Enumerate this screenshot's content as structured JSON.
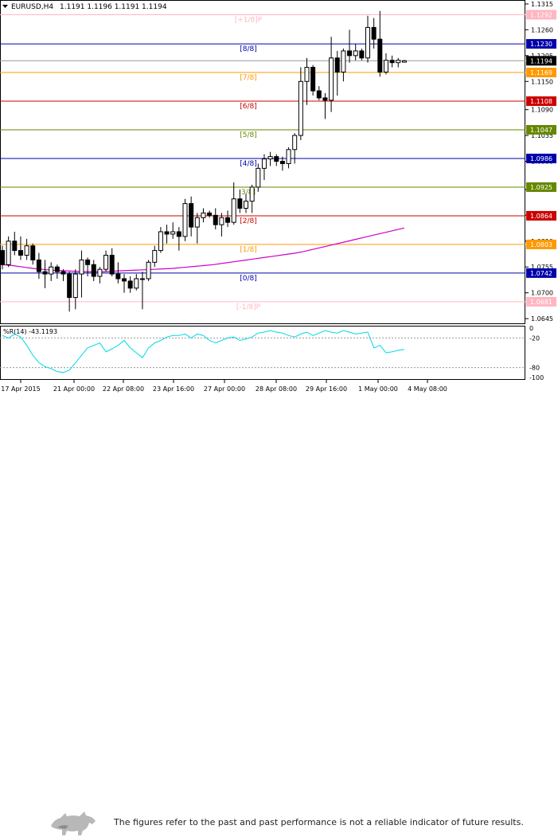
{
  "header": {
    "symbol_label": "EURUSD,H4",
    "ohlc": "1.1191 1.1196 1.1191 1.1194",
    "menu_icon": "triangle-down-icon"
  },
  "colors": {
    "bull": "#ffffff",
    "bear": "#000000",
    "candle_outline": "#000000",
    "ma": "#cc00cc",
    "wpr": "#00d8e8",
    "grid_level_neutral": "#999999"
  },
  "chart_data": [
    {
      "type": "candlestick",
      "title": "EURUSD,H4",
      "ylim": [
        1.0635,
        1.132
      ],
      "y_ticks": [
        "1.1315",
        "1.1260",
        "1.1205",
        "1.1150",
        "1.1090",
        "1.1035",
        "1.0980",
        "1.0920",
        "1.0865",
        "1.0810",
        "1.0755",
        "1.0700",
        "1.0645"
      ],
      "x_ticks": [
        "17 Apr 2015",
        "21 Apr 00:00",
        "22 Apr 08:00",
        "23 Apr 16:00",
        "27 Apr 00:00",
        "28 Apr 08:00",
        "29 Apr 16:00",
        "1 May 00:00",
        "4 May 08:00"
      ],
      "current_price": "1.1194",
      "murrey_levels": [
        {
          "label": "[+1/8]P",
          "value": 1.1292,
          "price_label": "1.1292",
          "color": "#ffb6c1"
        },
        {
          "label": "[8/8]",
          "value": 1.123,
          "price_label": "1.1230",
          "color": "#0000aa"
        },
        {
          "label": "[7/8]",
          "value": 1.1169,
          "price_label": "1.1169",
          "color": "#ff9900"
        },
        {
          "label": "[6/8]",
          "value": 1.1108,
          "price_label": "1.1108",
          "color": "#cc0000"
        },
        {
          "label": "[5/8]",
          "value": 1.1047,
          "price_label": "1.1047",
          "color": "#668800"
        },
        {
          "label": "[4/8]",
          "value": 1.0986,
          "price_label": "1.0986",
          "color": "#0000aa"
        },
        {
          "label": "3/8]",
          "value": 1.0925,
          "price_label": "1.0925",
          "color": "#668800"
        },
        {
          "label": "[2/8]",
          "value": 1.0864,
          "price_label": "1.0864",
          "color": "#cc0000"
        },
        {
          "label": "[1/8]",
          "value": 1.0803,
          "price_label": "1.0803",
          "color": "#ff9900"
        },
        {
          "label": "[0/8]",
          "value": 1.0742,
          "price_label": "1.0742",
          "color": "#0000aa"
        },
        {
          "label": "[-1/8]P",
          "value": 1.0681,
          "price_label": "1.0681",
          "color": "#ffb6c1"
        }
      ],
      "ohlc": [
        {
          "o": 1.079,
          "h": 1.08,
          "l": 1.075,
          "c": 1.076
        },
        {
          "o": 1.076,
          "h": 1.082,
          "l": 1.0755,
          "c": 1.081
        },
        {
          "o": 1.081,
          "h": 1.083,
          "l": 1.078,
          "c": 1.079
        },
        {
          "o": 1.079,
          "h": 1.082,
          "l": 1.077,
          "c": 1.078
        },
        {
          "o": 1.078,
          "h": 1.0815,
          "l": 1.077,
          "c": 1.08
        },
        {
          "o": 1.08,
          "h": 1.0805,
          "l": 1.076,
          "c": 1.077
        },
        {
          "o": 1.077,
          "h": 1.0785,
          "l": 1.073,
          "c": 1.0745
        },
        {
          "o": 1.0745,
          "h": 1.077,
          "l": 1.071,
          "c": 1.074
        },
        {
          "o": 1.074,
          "h": 1.0765,
          "l": 1.0725,
          "c": 1.0755
        },
        {
          "o": 1.0755,
          "h": 1.076,
          "l": 1.073,
          "c": 1.0745
        },
        {
          "o": 1.0745,
          "h": 1.075,
          "l": 1.0725,
          "c": 1.074
        },
        {
          "o": 1.074,
          "h": 1.0745,
          "l": 1.066,
          "c": 1.069
        },
        {
          "o": 1.069,
          "h": 1.075,
          "l": 1.0665,
          "c": 1.074
        },
        {
          "o": 1.074,
          "h": 1.079,
          "l": 1.069,
          "c": 1.077
        },
        {
          "o": 1.077,
          "h": 1.0775,
          "l": 1.0735,
          "c": 1.076
        },
        {
          "o": 1.076,
          "h": 1.077,
          "l": 1.0725,
          "c": 1.0735
        },
        {
          "o": 1.0735,
          "h": 1.0755,
          "l": 1.072,
          "c": 1.075
        },
        {
          "o": 1.075,
          "h": 1.079,
          "l": 1.0745,
          "c": 1.078
        },
        {
          "o": 1.078,
          "h": 1.0795,
          "l": 1.0735,
          "c": 1.074
        },
        {
          "o": 1.074,
          "h": 1.0765,
          "l": 1.072,
          "c": 1.073
        },
        {
          "o": 1.073,
          "h": 1.074,
          "l": 1.07,
          "c": 1.0725
        },
        {
          "o": 1.0725,
          "h": 1.0735,
          "l": 1.07,
          "c": 1.071
        },
        {
          "o": 1.071,
          "h": 1.074,
          "l": 1.0705,
          "c": 1.073
        },
        {
          "o": 1.073,
          "h": 1.0745,
          "l": 1.0665,
          "c": 1.073
        },
        {
          "o": 1.073,
          "h": 1.077,
          "l": 1.0725,
          "c": 1.0765
        },
        {
          "o": 1.0765,
          "h": 1.08,
          "l": 1.0755,
          "c": 1.079
        },
        {
          "o": 1.079,
          "h": 1.084,
          "l": 1.0785,
          "c": 1.083
        },
        {
          "o": 1.083,
          "h": 1.0845,
          "l": 1.0805,
          "c": 1.0825
        },
        {
          "o": 1.0825,
          "h": 1.085,
          "l": 1.0815,
          "c": 1.083
        },
        {
          "o": 1.083,
          "h": 1.084,
          "l": 1.079,
          "c": 1.082
        },
        {
          "o": 1.082,
          "h": 1.09,
          "l": 1.081,
          "c": 1.089
        },
        {
          "o": 1.089,
          "h": 1.0905,
          "l": 1.082,
          "c": 1.084
        },
        {
          "o": 1.084,
          "h": 1.087,
          "l": 1.0805,
          "c": 1.086
        },
        {
          "o": 1.086,
          "h": 1.088,
          "l": 1.085,
          "c": 1.087
        },
        {
          "o": 1.087,
          "h": 1.0875,
          "l": 1.086,
          "c": 1.0865
        },
        {
          "o": 1.0865,
          "h": 1.088,
          "l": 1.0835,
          "c": 1.0845
        },
        {
          "o": 1.0845,
          "h": 1.087,
          "l": 1.082,
          "c": 1.086
        },
        {
          "o": 1.086,
          "h": 1.0875,
          "l": 1.084,
          "c": 1.085
        },
        {
          "o": 1.085,
          "h": 1.0935,
          "l": 1.0845,
          "c": 1.09
        },
        {
          "o": 1.09,
          "h": 1.092,
          "l": 1.087,
          "c": 1.088
        },
        {
          "o": 1.088,
          "h": 1.091,
          "l": 1.087,
          "c": 1.0895
        },
        {
          "o": 1.0895,
          "h": 1.093,
          "l": 1.087,
          "c": 1.0925
        },
        {
          "o": 1.0925,
          "h": 1.0975,
          "l": 1.0915,
          "c": 1.0965
        },
        {
          "o": 1.0965,
          "h": 1.0995,
          "l": 1.094,
          "c": 1.0985
        },
        {
          "o": 1.0985,
          "h": 1.1,
          "l": 1.097,
          "c": 1.099
        },
        {
          "o": 1.099,
          "h": 1.0995,
          "l": 1.097,
          "c": 1.098
        },
        {
          "o": 1.098,
          "h": 1.099,
          "l": 1.096,
          "c": 1.0975
        },
        {
          "o": 1.0975,
          "h": 1.101,
          "l": 1.0965,
          "c": 1.1005
        },
        {
          "o": 1.1005,
          "h": 1.104,
          "l": 1.0975,
          "c": 1.1035
        },
        {
          "o": 1.1035,
          "h": 1.118,
          "l": 1.1025,
          "c": 1.115
        },
        {
          "o": 1.115,
          "h": 1.12,
          "l": 1.11,
          "c": 1.118
        },
        {
          "o": 1.118,
          "h": 1.1185,
          "l": 1.112,
          "c": 1.113
        },
        {
          "o": 1.113,
          "h": 1.114,
          "l": 1.111,
          "c": 1.1115
        },
        {
          "o": 1.1115,
          "h": 1.1125,
          "l": 1.107,
          "c": 1.111
        },
        {
          "o": 1.111,
          "h": 1.1245,
          "l": 1.1085,
          "c": 1.12
        },
        {
          "o": 1.12,
          "h": 1.1215,
          "l": 1.112,
          "c": 1.117
        },
        {
          "o": 1.117,
          "h": 1.122,
          "l": 1.115,
          "c": 1.1215
        },
        {
          "o": 1.1215,
          "h": 1.126,
          "l": 1.119,
          "c": 1.1205
        },
        {
          "o": 1.1205,
          "h": 1.123,
          "l": 1.1195,
          "c": 1.1215
        },
        {
          "o": 1.1215,
          "h": 1.122,
          "l": 1.1195,
          "c": 1.12
        },
        {
          "o": 1.12,
          "h": 1.129,
          "l": 1.119,
          "c": 1.1265
        },
        {
          "o": 1.1265,
          "h": 1.1285,
          "l": 1.122,
          "c": 1.124
        },
        {
          "o": 1.124,
          "h": 1.13,
          "l": 1.116,
          "c": 1.117
        },
        {
          "o": 1.117,
          "h": 1.121,
          "l": 1.1165,
          "c": 1.1195
        },
        {
          "o": 1.1195,
          "h": 1.1205,
          "l": 1.118,
          "c": 1.119
        },
        {
          "o": 1.119,
          "h": 1.12,
          "l": 1.118,
          "c": 1.1195
        },
        {
          "o": 1.1191,
          "h": 1.1196,
          "l": 1.1191,
          "c": 1.1194
        }
      ],
      "ma": [
        1.076,
        1.0758,
        1.0755,
        1.0752,
        1.075,
        1.0748,
        1.0747,
        1.0746,
        1.0745,
        1.0745,
        1.0745,
        1.0746,
        1.0747,
        1.0748,
        1.0749,
        1.075,
        1.0751,
        1.0752,
        1.0754,
        1.0756,
        1.0758,
        1.076,
        1.0763,
        1.0766,
        1.0769,
        1.0772,
        1.0775,
        1.0778,
        1.0781,
        1.0784,
        1.0788,
        1.0793,
        1.0798,
        1.0803,
        1.0808,
        1.0813,
        1.0818,
        1.0823,
        1.0828,
        1.0833,
        1.0838
      ]
    },
    {
      "type": "line",
      "title": "%R(14) -43.1193",
      "ylim": [
        -100,
        0
      ],
      "y_ticks": [
        "0",
        "-20",
        "-80",
        "-100"
      ],
      "levels": [
        -20,
        -80
      ],
      "values": [
        -15,
        -20,
        -12,
        -18,
        -35,
        -55,
        -70,
        -78,
        -82,
        -88,
        -90,
        -85,
        -70,
        -55,
        -40,
        -35,
        -30,
        -48,
        -42,
        -35,
        -25,
        -40,
        -50,
        -60,
        -40,
        -30,
        -25,
        -18,
        -15,
        -15,
        -12,
        -20,
        -12,
        -15,
        -25,
        -30,
        -25,
        -20,
        -18,
        -25,
        -22,
        -18,
        -10,
        -8,
        -5,
        -8,
        -10,
        -15,
        -18,
        -12,
        -8,
        -15,
        -10,
        -5,
        -8,
        -10,
        -5,
        -8,
        -12,
        -10,
        -8,
        -40,
        -35,
        -50,
        -48,
        -45,
        -43
      ]
    }
  ],
  "footer": {
    "disclaimer": "The figures refer to the past and past performance is not a reliable indicator of future results.",
    "logo_icon": "bull-logo-icon"
  }
}
